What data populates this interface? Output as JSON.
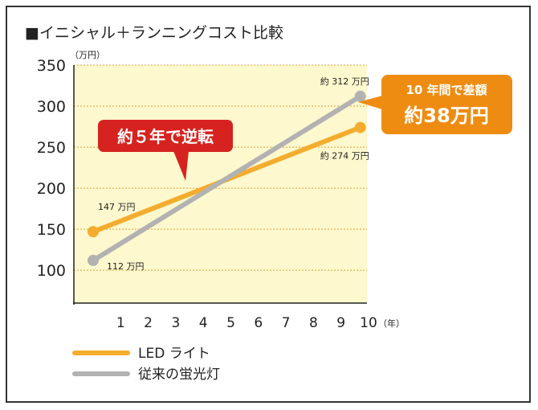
{
  "chart_data": {
    "type": "line",
    "title": "■イニシャル＋ランニングコスト比較",
    "y_unit": "（万円）",
    "x_unit": "（年）",
    "ylim": [
      60,
      350
    ],
    "xlim": [
      0,
      10
    ],
    "y_ticks": [
      100,
      150,
      200,
      250,
      300,
      350
    ],
    "x_ticks": [
      1,
      2,
      3,
      4,
      5,
      6,
      7,
      8,
      9,
      10
    ],
    "grid": true,
    "series": [
      {
        "name": "LED ライト",
        "color": "#f4ac2e",
        "x": [
          0,
          9.7
        ],
        "y": [
          147,
          274
        ],
        "point_labels": [
          "147 万円",
          "約 274 万円"
        ]
      },
      {
        "name": "従来の蛍光灯",
        "color": "#b2b2b2",
        "x": [
          0,
          9.7
        ],
        "y": [
          112,
          312
        ],
        "point_labels": [
          "112 万円",
          "約 312 万円"
        ]
      }
    ],
    "annotations": [
      {
        "text": "約５年で逆転",
        "color": "#d7231f"
      },
      {
        "line1": "10 年間で差額",
        "line2": "約38万円",
        "color": "#ee8c12"
      }
    ],
    "legend_position": "bottom-left"
  }
}
